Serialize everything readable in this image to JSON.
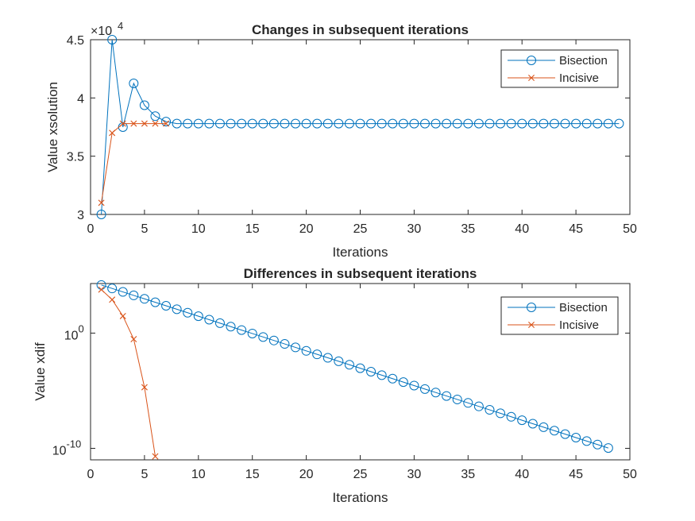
{
  "chart_data": [
    {
      "type": "line",
      "title": "Changes in subsequent iterations",
      "xlabel": "Iterations",
      "ylabel": "Value xsolution",
      "xlim": [
        0,
        50
      ],
      "ylim": [
        30000,
        45000
      ],
      "yscale": "linear",
      "x_ticks": [
        0,
        5,
        10,
        15,
        20,
        25,
        30,
        35,
        40,
        45,
        50
      ],
      "y_ticks": [
        30000,
        35000,
        40000,
        45000
      ],
      "y_tick_labels": [
        "3",
        "3.5",
        "4",
        "4.5"
      ],
      "y_exponent_label": {
        "base": "×10",
        "exponent": "4"
      },
      "grid": false,
      "legend_position": "top-right",
      "series": [
        {
          "name": "Bisection",
          "color": "#0072BD",
          "marker": "circle",
          "x": [
            1,
            2,
            3,
            4,
            5,
            6,
            7,
            8,
            9,
            10,
            11,
            12,
            13,
            14,
            15,
            16,
            17,
            18,
            19,
            20,
            21,
            22,
            23,
            24,
            25,
            26,
            27,
            28,
            29,
            30,
            31,
            32,
            33,
            34,
            35,
            36,
            37,
            38,
            39,
            40,
            41,
            42,
            43,
            44,
            45,
            46,
            47,
            48,
            49
          ],
          "values": [
            30000,
            45000,
            37500,
            41250,
            39375,
            38437.5,
            37968.75,
            37800,
            37800,
            37800,
            37800,
            37800,
            37800,
            37800,
            37800,
            37800,
            37800,
            37800,
            37800,
            37800,
            37800,
            37800,
            37800,
            37800,
            37800,
            37800,
            37800,
            37800,
            37800,
            37800,
            37800,
            37800,
            37800,
            37800,
            37800,
            37800,
            37800,
            37800,
            37800,
            37800,
            37800,
            37800,
            37800,
            37800,
            37800,
            37800,
            37800,
            37800,
            37800
          ]
        },
        {
          "name": "Incisive",
          "color": "#D95319",
          "marker": "x",
          "x": [
            1,
            2,
            3,
            4,
            5,
            6,
            7
          ],
          "values": [
            31000,
            37000,
            37800,
            37800,
            37800,
            37800,
            37800
          ]
        }
      ]
    },
    {
      "type": "line",
      "title": "Differences in subsequent iterations",
      "xlabel": "Iterations",
      "ylabel": "Value xdif",
      "xlim": [
        0,
        50
      ],
      "ylim": [
        1e-11,
        20000.0
      ],
      "yscale": "log",
      "x_ticks": [
        0,
        5,
        10,
        15,
        20,
        25,
        30,
        35,
        40,
        45,
        50
      ],
      "y_ticks": [
        1e-10,
        1.0
      ],
      "y_tick_labels": [
        {
          "base": "10",
          "exponent": "-10"
        },
        {
          "base": "10",
          "exponent": "0"
        }
      ],
      "grid": false,
      "legend_position": "top-right",
      "series": [
        {
          "name": "Bisection",
          "color": "#0072BD",
          "marker": "circle",
          "x": [
            1,
            2,
            3,
            4,
            5,
            6,
            7,
            8,
            9,
            10,
            11,
            12,
            13,
            14,
            15,
            16,
            17,
            18,
            19,
            20,
            21,
            22,
            23,
            24,
            25,
            26,
            27,
            28,
            29,
            30,
            31,
            32,
            33,
            34,
            35,
            36,
            37,
            38,
            39,
            40,
            41,
            42,
            43,
            44,
            45,
            46,
            47,
            48
          ],
          "values": [
            15000,
            7500,
            3750,
            1875,
            937.5,
            468.75,
            234.375,
            117.1875,
            58.59375,
            29.296875,
            14.6484375,
            7.32421875,
            3.662109375,
            1.8310546875,
            0.91552734375,
            0.457763671875,
            0.2288818359375,
            0.11444091796875,
            0.057220458984375,
            0.0286102294921875,
            0.01430511474609375,
            0.007152557373046875,
            0.0035762786865234375,
            0.0017881393432617188,
            0.0008940696716308594,
            0.0004470348358154297,
            0.00022351741790771484,
            0.00011175870895385742,
            5.587935447692871e-05,
            2.7939677238464355e-05,
            1.3969838619232178e-05,
            6.984919309616089e-06,
            3.4924596548080444e-06,
            1.7462298274040222e-06,
            8.731149137020111e-07,
            4.3655745685100555e-07,
            2.1827872842550278e-07,
            1.0913936421275139e-07,
            5.4569682106375694e-08,
            2.7284841053187847e-08,
            1.3642420526593924e-08,
            6.821210263296962e-09,
            3.410605131648481e-09,
            1.7053025658242404e-09,
            8.526512829121202e-10,
            4.263256414560601e-10,
            2.1316282072803006e-10,
            1.0658141036401503e-10
          ]
        },
        {
          "name": "Incisive",
          "color": "#D95319",
          "marker": "x",
          "x": [
            1,
            2,
            3,
            4,
            5,
            6
          ],
          "values": [
            6000,
            800,
            30,
            0.3,
            2e-05,
            2e-11
          ]
        }
      ]
    }
  ]
}
